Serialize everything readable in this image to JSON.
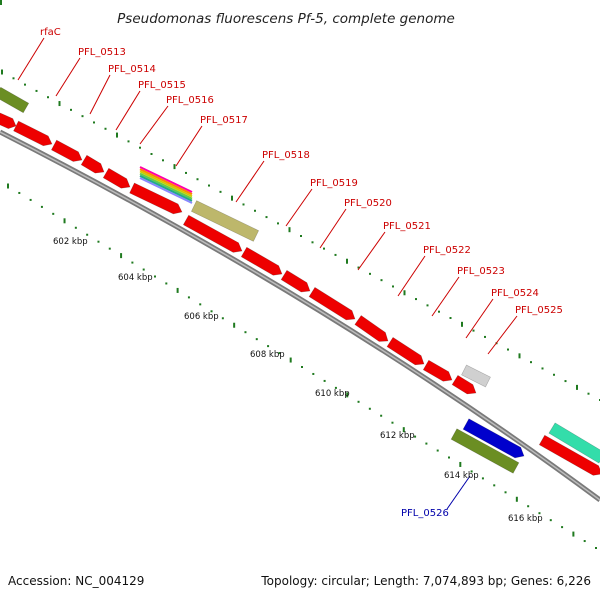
{
  "title": "Pseudomonas fluorescens Pf-5, complete genome",
  "footer": {
    "accession": "Accession: NC_004129",
    "summary": "Topology: circular; Length: 7,074,893 bp; Genes: 6,226"
  },
  "colors": {
    "label_default": "#cc0000",
    "label_blue": "#0000aa",
    "backbone": "#8c8c8c",
    "ticks": "#1f7a1f"
  },
  "gene_labels": [
    {
      "text": "rfaC",
      "color": "#cc0000"
    },
    {
      "text": "PFL_0513",
      "color": "#cc0000"
    },
    {
      "text": "PFL_0514",
      "color": "#cc0000"
    },
    {
      "text": "PFL_0515",
      "color": "#cc0000"
    },
    {
      "text": "PFL_0516",
      "color": "#cc0000"
    },
    {
      "text": "PFL_0517",
      "color": "#cc0000"
    },
    {
      "text": "PFL_0518",
      "color": "#cc0000"
    },
    {
      "text": "PFL_0519",
      "color": "#cc0000"
    },
    {
      "text": "PFL_0520",
      "color": "#cc0000"
    },
    {
      "text": "PFL_0521",
      "color": "#cc0000"
    },
    {
      "text": "PFL_0522",
      "color": "#cc0000"
    },
    {
      "text": "PFL_0523",
      "color": "#cc0000"
    },
    {
      "text": "PFL_0524",
      "color": "#cc0000"
    },
    {
      "text": "PFL_0525",
      "color": "#cc0000"
    },
    {
      "text": "PFL_0526",
      "color": "#0000aa"
    }
  ],
  "kbp_labels": [
    "602 kbp",
    "604 kbp",
    "606 kbp",
    "608 kbp",
    "610 kbp",
    "612 kbp",
    "614 kbp",
    "616 kbp"
  ]
}
